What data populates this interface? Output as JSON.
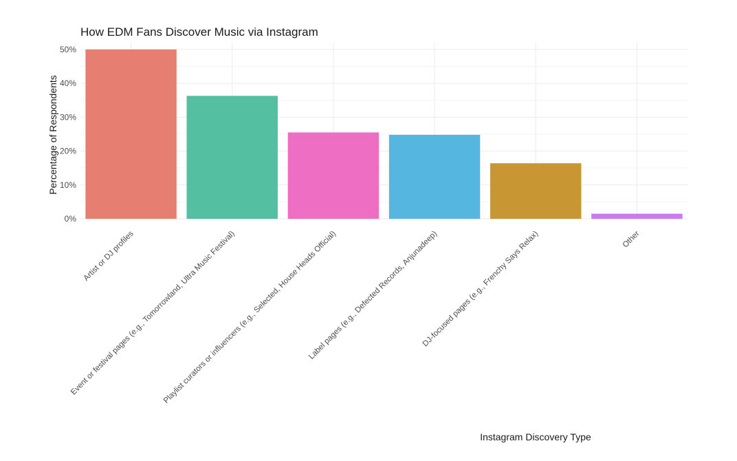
{
  "chart_data": {
    "type": "bar",
    "title": "How EDM Fans Discover Music via Instagram",
    "xlabel": "Instagram Discovery Type",
    "ylabel": "Percentage of Respondents",
    "ylim": [
      0,
      52
    ],
    "yticks": [
      0,
      10,
      20,
      30,
      40,
      50
    ],
    "ytick_labels": [
      "0%",
      "10%",
      "20%",
      "30%",
      "40%",
      "50%"
    ],
    "grid": true,
    "legend": "none",
    "categories": [
      "Artist or DJ profiles",
      "Event or festival pages (e.g., Tomorrowland, Ultra Music Festival)",
      "Playlist curators or influencers (e.g., Selected, House Heads Official)",
      "Label pages (e.g., Defected Records, Anjunadeep)",
      "DJ-focused pages (e.g., Frenchy Says Relax)",
      "Other"
    ],
    "values": [
      50,
      36.3,
      25.5,
      24.8,
      16.4,
      1.5
    ],
    "colors": [
      "#E67F72",
      "#55BFA1",
      "#EE6EC4",
      "#55B6E0",
      "#C89633",
      "#CA7AF0"
    ]
  }
}
